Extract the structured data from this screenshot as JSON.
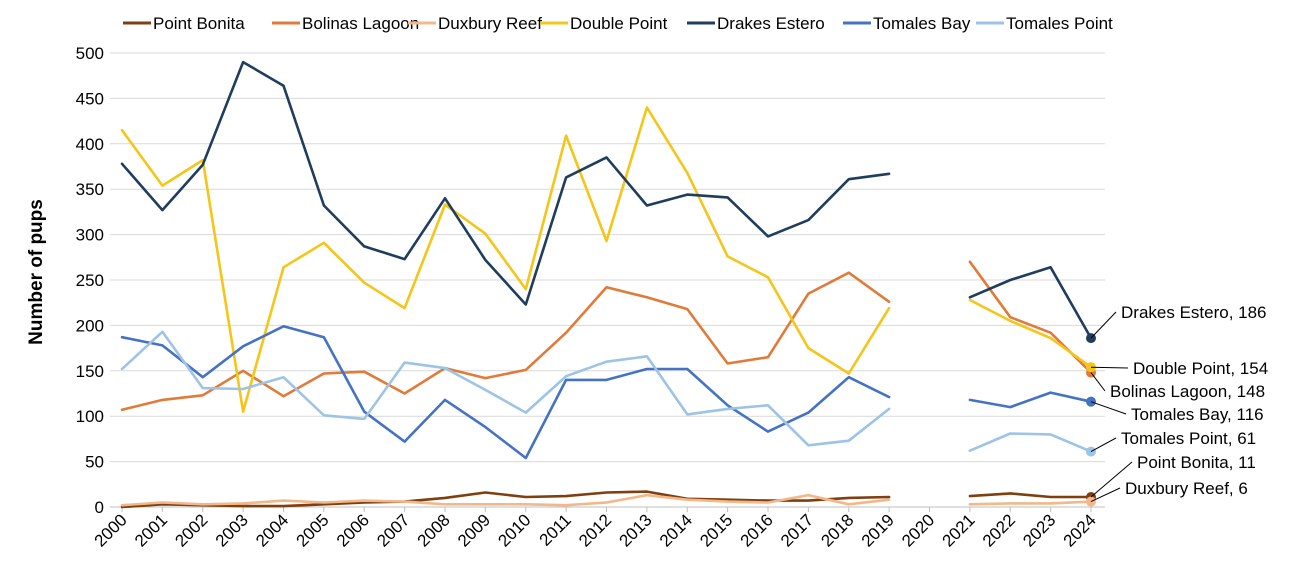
{
  "chart_data": {
    "type": "line",
    "title": "",
    "xlabel": "",
    "ylabel": "Number of pups",
    "ylim": [
      0,
      500
    ],
    "yticks": [
      "0",
      "50",
      "100",
      "150",
      "200",
      "250",
      "300",
      "350",
      "400",
      "450",
      "500"
    ],
    "grid": "horizontal",
    "legend_position": "top",
    "categories": [
      "2000",
      "2001",
      "2002",
      "2003",
      "2004",
      "2005",
      "2006",
      "2007",
      "2008",
      "2009",
      "2010",
      "2011",
      "2012",
      "2013",
      "2014",
      "2015",
      "2016",
      "2017",
      "2018",
      "2019",
      "2020",
      "2021",
      "2022",
      "2023",
      "2024"
    ],
    "series": [
      {
        "name": "Point Bonita",
        "color": "#7f3f0f",
        "end_label": "Point Bonita,  11",
        "values": [
          0,
          3,
          2,
          1,
          1,
          3,
          5,
          6,
          10,
          16,
          11,
          12,
          16,
          17,
          9,
          8,
          7,
          7,
          10,
          11,
          null,
          12,
          15,
          11,
          11
        ]
      },
      {
        "name": "Bolinas Lagoon",
        "color": "#e07b39",
        "end_label": "Bolinas Lagoon,  148",
        "values": [
          107,
          118,
          123,
          150,
          122,
          147,
          149,
          125,
          153,
          142,
          151,
          192,
          242,
          231,
          218,
          158,
          165,
          235,
          258,
          226,
          null,
          270,
          209,
          192,
          148
        ]
      },
      {
        "name": "Duxbury Reef",
        "color": "#f2b88a",
        "end_label": "Duxbury Reef,  6",
        "values": [
          2,
          5,
          3,
          4,
          7,
          5,
          7,
          6,
          3,
          3,
          3,
          2,
          5,
          13,
          8,
          6,
          5,
          13,
          3,
          8,
          null,
          3,
          4,
          4,
          6
        ]
      },
      {
        "name": "Double Point",
        "color": "#f5c518",
        "end_label": "Double Point,  154",
        "values": [
          415,
          354,
          382,
          105,
          264,
          291,
          247,
          219,
          333,
          301,
          240,
          409,
          293,
          440,
          368,
          276,
          253,
          175,
          147,
          219,
          null,
          228,
          205,
          186,
          154
        ]
      },
      {
        "name": "Drakes Estero",
        "color": "#1f3d5c",
        "end_label": "Drakes Estero,  186",
        "values": [
          378,
          327,
          377,
          490,
          464,
          332,
          287,
          273,
          340,
          272,
          223,
          363,
          385,
          332,
          344,
          341,
          298,
          316,
          361,
          367,
          null,
          231,
          250,
          264,
          186
        ]
      },
      {
        "name": "Tomales Bay",
        "color": "#4472c4",
        "end_label": "Tomales Bay,  116",
        "values": [
          187,
          178,
          143,
          177,
          199,
          187,
          105,
          72,
          118,
          88,
          54,
          140,
          140,
          152,
          152,
          112,
          83,
          104,
          143,
          121,
          null,
          118,
          110,
          126,
          116
        ]
      },
      {
        "name": "Tomales Point",
        "color": "#9dc3e6",
        "end_label": "Tomales Point,  61",
        "values": [
          152,
          193,
          131,
          130,
          143,
          101,
          97,
          159,
          153,
          129,
          104,
          144,
          160,
          166,
          102,
          108,
          112,
          68,
          73,
          108,
          null,
          62,
          81,
          80,
          61
        ]
      }
    ]
  }
}
